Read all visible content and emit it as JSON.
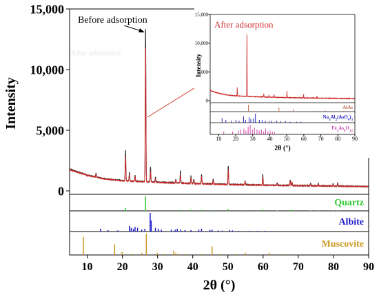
{
  "chart_data": [
    {
      "type": "line",
      "role": "main",
      "xlabel": "2θ (°)",
      "ylabel": "Intensity",
      "xlim": [
        5,
        90
      ],
      "ylim": [
        0,
        15000
      ],
      "xticks": [
        10,
        20,
        30,
        40,
        50,
        60,
        70,
        80,
        90
      ],
      "yticks": [
        0,
        5000,
        10000,
        15000
      ],
      "ytick_labels": [
        "0",
        "5,000",
        "10,000",
        "15,000"
      ],
      "grid": false,
      "annotations": [
        {
          "text": "Before adsorption",
          "x": 27,
          "y": 13300
        },
        {
          "text": "After adsorption",
          "x": 27,
          "y": 11900
        }
      ],
      "series": [
        {
          "name": "Before adsorption",
          "color": "#222222",
          "baseline": [
            [
              5,
              1800
            ],
            [
              10,
              1300
            ],
            [
              15,
              1000
            ],
            [
              20,
              850
            ],
            [
              25,
              780
            ],
            [
              30,
              720
            ],
            [
              40,
              620
            ],
            [
              50,
              540
            ],
            [
              60,
              480
            ],
            [
              70,
              440
            ],
            [
              80,
              400
            ],
            [
              90,
              360
            ]
          ],
          "peaks": [
            [
              12.5,
              300
            ],
            [
              20.9,
              2500
            ],
            [
              22,
              700
            ],
            [
              23.6,
              500
            ],
            [
              26.6,
              12600
            ],
            [
              28,
              1200
            ],
            [
              29.4,
              400
            ],
            [
              35.2,
              300
            ],
            [
              36.5,
              1000
            ],
            [
              39.5,
              600
            ],
            [
              40.3,
              350
            ],
            [
              42.5,
              750
            ],
            [
              45.8,
              400
            ],
            [
              50.1,
              1500
            ],
            [
              54.9,
              300
            ],
            [
              59.9,
              900
            ],
            [
              64,
              200
            ],
            [
              67.7,
              450
            ],
            [
              68.2,
              300
            ],
            [
              73.5,
              200
            ],
            [
              75.7,
              200
            ],
            [
              79.9,
              200
            ],
            [
              81.2,
              250
            ]
          ]
        },
        {
          "name": "After adsorption",
          "color": "#cc2a2a",
          "baseline": [
            [
              5,
              1750
            ],
            [
              10,
              1280
            ],
            [
              15,
              980
            ],
            [
              20,
              830
            ],
            [
              25,
              760
            ],
            [
              30,
              700
            ],
            [
              40,
              600
            ],
            [
              50,
              520
            ],
            [
              60,
              470
            ],
            [
              70,
              430
            ],
            [
              80,
              390
            ],
            [
              90,
              350
            ]
          ],
          "peaks": [
            [
              12.5,
              250
            ],
            [
              20.9,
              2000
            ],
            [
              22,
              550
            ],
            [
              23.6,
              400
            ],
            [
              26.6,
              11000
            ],
            [
              28,
              900
            ],
            [
              29.4,
              300
            ],
            [
              35.2,
              250
            ],
            [
              36.5,
              800
            ],
            [
              39.5,
              450
            ],
            [
              40.3,
              300
            ],
            [
              42.5,
              600
            ],
            [
              45.8,
              300
            ],
            [
              50.1,
              1200
            ],
            [
              54.9,
              250
            ],
            [
              59.9,
              700
            ],
            [
              64,
              150
            ],
            [
              67.7,
              350
            ],
            [
              68.2,
              250
            ],
            [
              73.5,
              150
            ],
            [
              75.7,
              150
            ],
            [
              79.9,
              150
            ],
            [
              81.2,
              200
            ]
          ]
        }
      ],
      "references": [
        {
          "name": "Quartz",
          "color": "#33cc33",
          "peaks": [
            [
              20.9,
              0.2
            ],
            [
              26.6,
              1
            ],
            [
              36.5,
              0.08
            ],
            [
              39.5,
              0.08
            ],
            [
              40.3,
              0.04
            ],
            [
              42.5,
              0.06
            ],
            [
              45.8,
              0.04
            ],
            [
              50.1,
              0.13
            ],
            [
              54.9,
              0.04
            ],
            [
              59.9,
              0.09
            ],
            [
              64,
              0.02
            ],
            [
              67.7,
              0.05
            ],
            [
              68.2,
              0.06
            ],
            [
              73.5,
              0.02
            ],
            [
              75.7,
              0.02
            ],
            [
              79.9,
              0.03
            ],
            [
              81.2,
              0.02
            ]
          ]
        },
        {
          "name": "Albite",
          "color": "#1f1fc8",
          "peaks": [
            [
              13.8,
              0.15
            ],
            [
              15.9,
              0.08
            ],
            [
              18.7,
              0.06
            ],
            [
              22,
              0.3
            ],
            [
              22.5,
              0.2
            ],
            [
              23.1,
              0.15
            ],
            [
              23.6,
              0.25
            ],
            [
              24.3,
              0.2
            ],
            [
              25.5,
              0.1
            ],
            [
              26.4,
              0.15
            ],
            [
              27.9,
              1
            ],
            [
              28.2,
              0.6
            ],
            [
              29.4,
              0.2
            ],
            [
              30.2,
              0.15
            ],
            [
              31.1,
              0.1
            ],
            [
              33.9,
              0.1
            ],
            [
              35,
              0.1
            ],
            [
              35.6,
              0.15
            ],
            [
              36.6,
              0.1
            ],
            [
              37.8,
              0.08
            ],
            [
              39.5,
              0.08
            ],
            [
              41.7,
              0.1
            ],
            [
              42.5,
              0.15
            ],
            [
              44.9,
              0.08
            ],
            [
              45.5,
              0.1
            ],
            [
              47.3,
              0.06
            ],
            [
              48.4,
              0.05
            ],
            [
              50.5,
              0.08
            ],
            [
              51.3,
              0.06
            ],
            [
              53,
              0.04
            ],
            [
              56.2,
              0.04
            ],
            [
              58.4,
              0.04
            ],
            [
              60.5,
              0.04
            ],
            [
              62.2,
              0.03
            ]
          ]
        },
        {
          "name": "Muscovite",
          "color": "#cc9922",
          "peaks": [
            [
              8.9,
              0.85
            ],
            [
              17.8,
              0.5
            ],
            [
              19.9,
              0.15
            ],
            [
              22.9,
              0.06
            ],
            [
              25.5,
              0.1
            ],
            [
              26.8,
              1
            ],
            [
              29.9,
              0.1
            ],
            [
              32,
              0.05
            ],
            [
              34.6,
              0.2
            ],
            [
              35.2,
              0.1
            ],
            [
              36.2,
              0.05
            ],
            [
              38,
              0.05
            ],
            [
              42.5,
              0.05
            ],
            [
              45.5,
              0.4
            ],
            [
              47.5,
              0.05
            ],
            [
              52,
              0.05
            ],
            [
              55,
              0.1
            ],
            [
              61.8,
              0.1
            ],
            [
              65.5,
              0.05
            ]
          ]
        }
      ]
    },
    {
      "type": "line",
      "role": "inset",
      "xlabel": "2θ (°)",
      "ylabel": "Intensity",
      "xlim": [
        5,
        90
      ],
      "ylim": [
        0,
        15000
      ],
      "xticks": [
        10,
        20,
        30,
        40,
        50,
        60,
        70,
        80,
        90
      ],
      "yticks": [
        0,
        5000,
        10000,
        15000
      ],
      "ytick_labels": [
        "0",
        "5,000",
        "10,000",
        "15,000"
      ],
      "grid": false,
      "annotations": [
        {
          "text": "After adsorption",
          "x": 27,
          "y": 11500
        }
      ],
      "series": [
        {
          "name": "After adsorption",
          "color": "#cc2a2a",
          "baseline": [
            [
              5,
              1750
            ],
            [
              10,
              1280
            ],
            [
              15,
              980
            ],
            [
              20,
              830
            ],
            [
              25,
              760
            ],
            [
              30,
              700
            ],
            [
              40,
              600
            ],
            [
              50,
              520
            ],
            [
              60,
              470
            ],
            [
              70,
              430
            ],
            [
              80,
              390
            ],
            [
              90,
              350
            ]
          ],
          "peaks": [
            [
              20.9,
              1500
            ],
            [
              26.6,
              10800
            ],
            [
              36.5,
              600
            ],
            [
              39.5,
              350
            ],
            [
              42.5,
              500
            ],
            [
              50.1,
              1100
            ],
            [
              59.9,
              600
            ],
            [
              67.7,
              300
            ]
          ]
        }
      ],
      "references": [
        {
          "name": "AlAs",
          "color": "#c46a4a",
          "peaks": [
            [
              27.5,
              1
            ],
            [
              45.4,
              0.6
            ],
            [
              53.8,
              0.35
            ],
            [
              66,
              0.12
            ],
            [
              72.8,
              0.15
            ],
            [
              83.5,
              0.12
            ]
          ]
        },
        {
          "name": "Na3Al2(AsO4)3",
          "label_html": "Na<tspan baseline-shift=\"sub\" font-size=\"5\">3</tspan>Al<tspan baseline-shift=\"sub\" font-size=\"5\">2</tspan>(AsO<tspan baseline-shift=\"sub\" font-size=\"5\">4</tspan>)<tspan baseline-shift=\"sub\" font-size=\"5\">3</tspan>",
          "color": "#2020c0",
          "peaks": [
            [
              12,
              0.5
            ],
            [
              14.2,
              0.3
            ],
            [
              17.4,
              0.2
            ],
            [
              20.1,
              0.3
            ],
            [
              22,
              0.2
            ],
            [
              24.6,
              0.7
            ],
            [
              25.8,
              0.3
            ],
            [
              27.9,
              0.6
            ],
            [
              28.9,
              0.4
            ],
            [
              30.5,
              0.5
            ],
            [
              31.6,
              1
            ],
            [
              33.9,
              0.3
            ],
            [
              35.5,
              0.3
            ],
            [
              37.4,
              0.2
            ],
            [
              39.6,
              0.2
            ],
            [
              41.2,
              0.2
            ],
            [
              44.1,
              0.2
            ],
            [
              46.5,
              0.15
            ],
            [
              49.3,
              0.15
            ],
            [
              52,
              0.1
            ],
            [
              55.8,
              0.1
            ],
            [
              58.4,
              0.1
            ]
          ]
        },
        {
          "name": "Fe2As4O12",
          "label_html": "Fe<tspan baseline-shift=\"sub\" font-size=\"5\">2</tspan>As<tspan baseline-shift=\"sub\" font-size=\"5\">4</tspan>O<tspan baseline-shift=\"sub\" font-size=\"5\">12</tspan>",
          "color": "#cc44aa",
          "peaks": [
            [
              13,
              0.3
            ],
            [
              18.2,
              0.3
            ],
            [
              21.5,
              0.4
            ],
            [
              23,
              0.5
            ],
            [
              24.8,
              0.6
            ],
            [
              26,
              0.4
            ],
            [
              27.3,
              0.8
            ],
            [
              28.5,
              1
            ],
            [
              29.8,
              0.5
            ],
            [
              31,
              0.7
            ],
            [
              32.5,
              0.5
            ],
            [
              33.8,
              0.4
            ],
            [
              35.1,
              0.5
            ],
            [
              36.4,
              0.3
            ],
            [
              37.6,
              0.6
            ],
            [
              38.9,
              0.3
            ],
            [
              40.2,
              0.4
            ],
            [
              41.5,
              0.3
            ],
            [
              42.8,
              0.2
            ]
          ]
        }
      ]
    }
  ]
}
